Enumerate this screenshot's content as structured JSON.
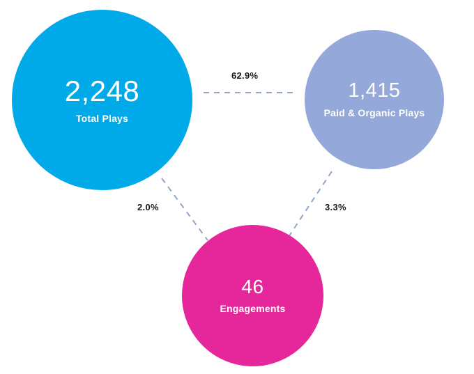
{
  "colors": {
    "total": "#00a9e8",
    "paid": "#94a9d9",
    "engagements": "#e6269b",
    "connector": "#8fa6c6"
  },
  "nodes": {
    "total_plays": {
      "value": "2,248",
      "label": "Total Plays"
    },
    "paid_organic_plays": {
      "value": "1,415",
      "label": "Paid & Organic Plays"
    },
    "engagements": {
      "value": "46",
      "label": "Engagements"
    }
  },
  "rates": {
    "total_to_paid": "62.9%",
    "total_to_engagements": "2.0%",
    "paid_to_engagements": "3.3%"
  }
}
